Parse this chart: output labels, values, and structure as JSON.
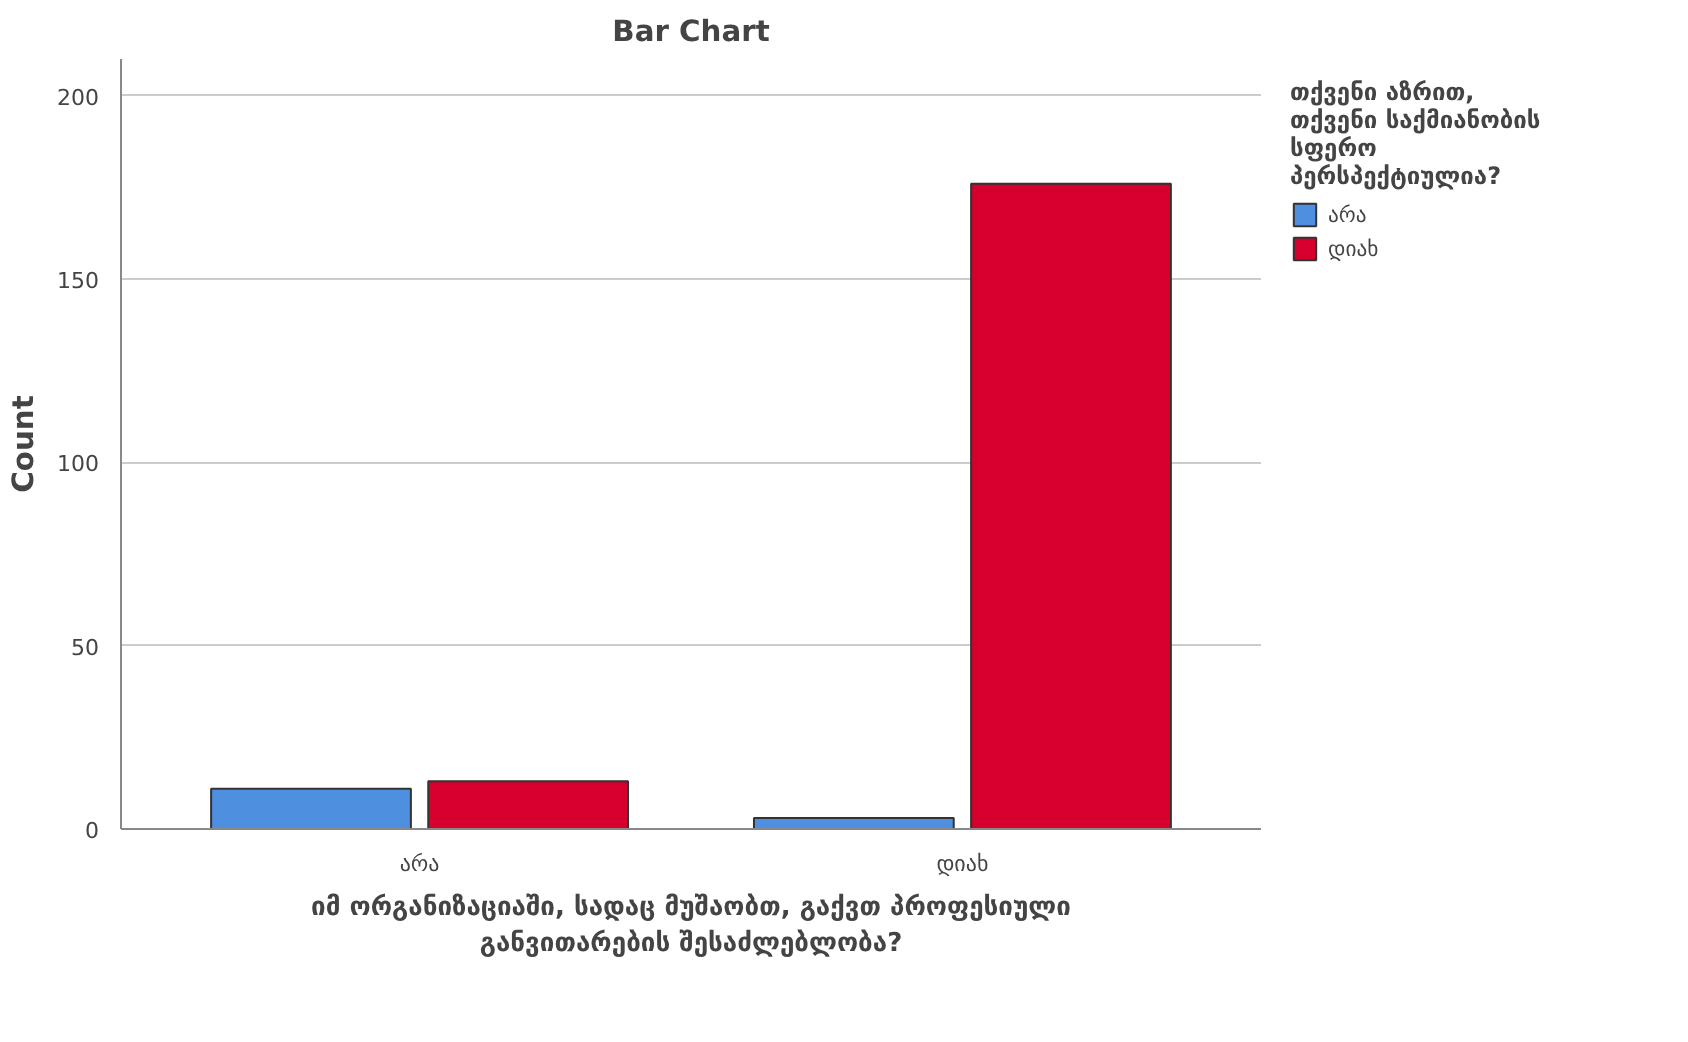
{
  "chart_data": {
    "type": "bar",
    "title": "Bar Chart",
    "xlabel": "იმ ორგანიზაციაში, სადაც მუშაობთ, გაქვთ პროფესიული განვითარების შესაძლებლობა?",
    "ylabel": "Count",
    "legend_title": "თქვენი აზრით, თქვენი საქმიანობის სფერო პერსპექტიულია?",
    "categories": [
      "არა",
      "დიახ"
    ],
    "series": [
      {
        "name": "არა",
        "color": "#4f8fe0",
        "values": [
          11,
          3
        ]
      },
      {
        "name": "დიახ",
        "color": "#d6002c",
        "values": [
          13,
          176
        ]
      }
    ],
    "ylim": [
      0,
      210
    ],
    "yticks": [
      0,
      50,
      100,
      150,
      200
    ],
    "grid": "y",
    "legend": "right"
  }
}
